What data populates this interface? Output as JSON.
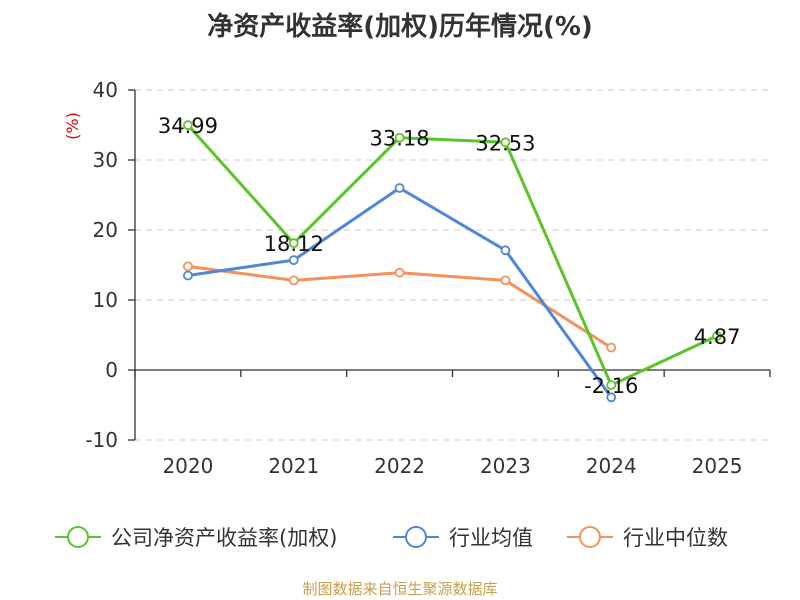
{
  "chart_data": {
    "type": "line",
    "title": "净资产收益率(加权)历年情况(%)",
    "ylabel": "(%)",
    "xlabel": "",
    "categories": [
      "2020",
      "2021",
      "2022",
      "2023",
      "2024",
      "2025"
    ],
    "ylim": [
      -10,
      40
    ],
    "yticks": [
      -10,
      0,
      10,
      20,
      30,
      40
    ],
    "grid": true,
    "legend_position": "bottom",
    "series": [
      {
        "name": "公司净资产收益率(加权)",
        "color": "#5bc42a",
        "values": [
          34.99,
          18.12,
          33.18,
          32.53,
          -2.16,
          4.87
        ],
        "data_labels": [
          "34.99",
          "18.12",
          "33.18",
          "32.53",
          "-2.16",
          "4.87"
        ]
      },
      {
        "name": "行业均值",
        "color": "#4f86d8",
        "values": [
          13.5,
          15.7,
          26.0,
          17.1,
          -3.9,
          null
        ]
      },
      {
        "name": "行业中位数",
        "color": "#f5915a",
        "values": [
          14.8,
          12.8,
          13.9,
          12.8,
          3.2,
          null
        ]
      }
    ]
  },
  "source_note": "制图数据来自恒生聚源数据库"
}
